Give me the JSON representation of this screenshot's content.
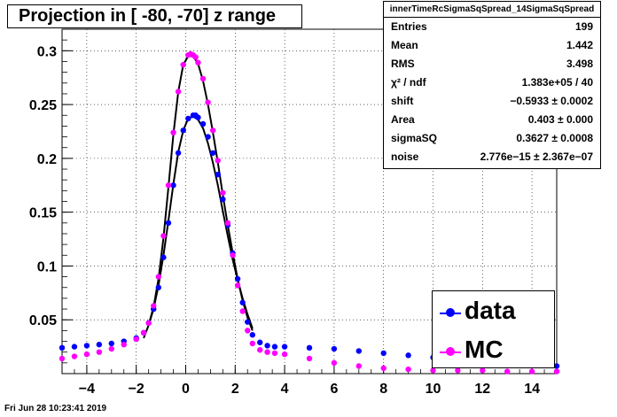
{
  "chart_data": {
    "type": "scatter",
    "title": "Projection in [ -80, -70] z range",
    "xlim": [
      -5,
      15
    ],
    "ylim": [
      0,
      0.32
    ],
    "xticks": [
      -4,
      -2,
      0,
      2,
      4,
      6,
      8,
      10,
      12,
      14
    ],
    "yticks": [
      0.05,
      0.1,
      0.15,
      0.2,
      0.25,
      0.3
    ],
    "xtick_labels": [
      "−4",
      "−2",
      "0",
      "2",
      "4",
      "6",
      "8",
      "10",
      "12",
      "14"
    ],
    "ytick_labels": [
      "0.05",
      "0.1",
      "0.15",
      "0.2",
      "0.25",
      "0.3"
    ],
    "grid": true,
    "legend_placement": "bottom-right",
    "series": [
      {
        "name": "data",
        "color": "#0000ff",
        "x": [
          -5.0,
          -4.5,
          -4.0,
          -3.5,
          -3.0,
          -2.5,
          -2.0,
          -1.7,
          -1.5,
          -1.3,
          -1.1,
          -0.9,
          -0.7,
          -0.5,
          -0.3,
          -0.1,
          0.1,
          0.3,
          0.4,
          0.5,
          0.7,
          0.9,
          1.1,
          1.3,
          1.5,
          1.7,
          1.9,
          2.1,
          2.3,
          2.5,
          2.7,
          3.0,
          3.3,
          3.6,
          4.0,
          5.0,
          6.0,
          7.0,
          8.0,
          9.0,
          10.0,
          11.0,
          12.0,
          13.0,
          14.0,
          15.0
        ],
        "y": [
          0.024,
          0.025,
          0.026,
          0.027,
          0.028,
          0.03,
          0.033,
          0.038,
          0.047,
          0.06,
          0.08,
          0.108,
          0.14,
          0.175,
          0.205,
          0.226,
          0.237,
          0.24,
          0.24,
          0.238,
          0.232,
          0.22,
          0.205,
          0.185,
          0.162,
          0.138,
          0.112,
          0.088,
          0.066,
          0.048,
          0.036,
          0.029,
          0.026,
          0.025,
          0.025,
          0.024,
          0.023,
          0.021,
          0.019,
          0.017,
          0.015,
          0.013,
          0.011,
          0.009,
          0.008,
          0.007
        ]
      },
      {
        "name": "MC",
        "color": "#ff00ff",
        "x": [
          -5.0,
          -4.5,
          -4.0,
          -3.5,
          -3.0,
          -2.5,
          -2.0,
          -1.7,
          -1.5,
          -1.3,
          -1.1,
          -0.9,
          -0.7,
          -0.5,
          -0.3,
          -0.1,
          0.1,
          0.2,
          0.3,
          0.4,
          0.5,
          0.7,
          0.9,
          1.1,
          1.3,
          1.5,
          1.7,
          1.9,
          2.1,
          2.3,
          2.5,
          2.7,
          3.0,
          3.3,
          3.6,
          4.0,
          5.0,
          6.0,
          7.0,
          8.0,
          9.0,
          10.0,
          11.0,
          12.0,
          13.0,
          14.0,
          15.0
        ],
        "y": [
          0.014,
          0.016,
          0.018,
          0.02,
          0.023,
          0.027,
          0.032,
          0.038,
          0.047,
          0.063,
          0.09,
          0.128,
          0.175,
          0.224,
          0.262,
          0.287,
          0.296,
          0.297,
          0.296,
          0.294,
          0.289,
          0.274,
          0.252,
          0.226,
          0.198,
          0.168,
          0.14,
          0.11,
          0.082,
          0.058,
          0.04,
          0.028,
          0.022,
          0.02,
          0.019,
          0.018,
          0.014,
          0.01,
          0.007,
          0.005,
          0.004,
          0.003,
          0.003,
          0.003,
          0.002,
          0.002,
          0.002
        ]
      }
    ],
    "fits": [
      {
        "x": [
          -1.7,
          -1.5,
          -1.3,
          -1.1,
          -0.9,
          -0.7,
          -0.5,
          -0.3,
          -0.1,
          0.1,
          0.3,
          0.5,
          0.7,
          0.9,
          1.1,
          1.3,
          1.5,
          1.7,
          1.9,
          2.1,
          2.3,
          2.5,
          2.7
        ],
        "y": [
          0.033,
          0.045,
          0.06,
          0.082,
          0.11,
          0.142,
          0.176,
          0.206,
          0.226,
          0.237,
          0.239,
          0.236,
          0.228,
          0.214,
          0.196,
          0.175,
          0.151,
          0.128,
          0.106,
          0.087,
          0.07,
          0.055,
          0.042
        ]
      },
      {
        "x": [
          -1.5,
          -1.3,
          -1.1,
          -0.9,
          -0.7,
          -0.5,
          -0.3,
          -0.1,
          0.1,
          0.3,
          0.5,
          0.7,
          0.9,
          1.1,
          1.3,
          1.5,
          1.7,
          1.9,
          2.1,
          2.3,
          2.5,
          2.7
        ],
        "y": [
          0.045,
          0.062,
          0.088,
          0.126,
          0.173,
          0.222,
          0.262,
          0.287,
          0.295,
          0.295,
          0.288,
          0.272,
          0.25,
          0.224,
          0.196,
          0.166,
          0.138,
          0.112,
          0.088,
          0.068,
          0.052,
          0.04
        ]
      }
    ]
  },
  "stats": {
    "title": "innerTimeRcSigmaSqSpread_14SigmaSqSpread",
    "rows": [
      {
        "name": "Entries",
        "value": "199"
      },
      {
        "name": "Mean",
        "value": "1.442"
      },
      {
        "name": "RMS",
        "value": "3.498"
      },
      {
        "name": "χ² / ndf",
        "value": "1.383e+05 / 40"
      },
      {
        "name": "shift",
        "value": "−0.5933 ± 0.0002"
      },
      {
        "name": "Area",
        "value": "0.403 ± 0.000"
      },
      {
        "name": "sigmaSQ",
        "value": "0.3627 ± 0.0008"
      },
      {
        "name": "noise",
        "value": "2.776e−15 ± 2.367e−07"
      }
    ]
  },
  "legend": [
    {
      "label": "data",
      "color": "#0000ff"
    },
    {
      "label": "MC",
      "color": "#ff00ff"
    }
  ],
  "footer": "Fri Jun 28 10:23:41 2019"
}
